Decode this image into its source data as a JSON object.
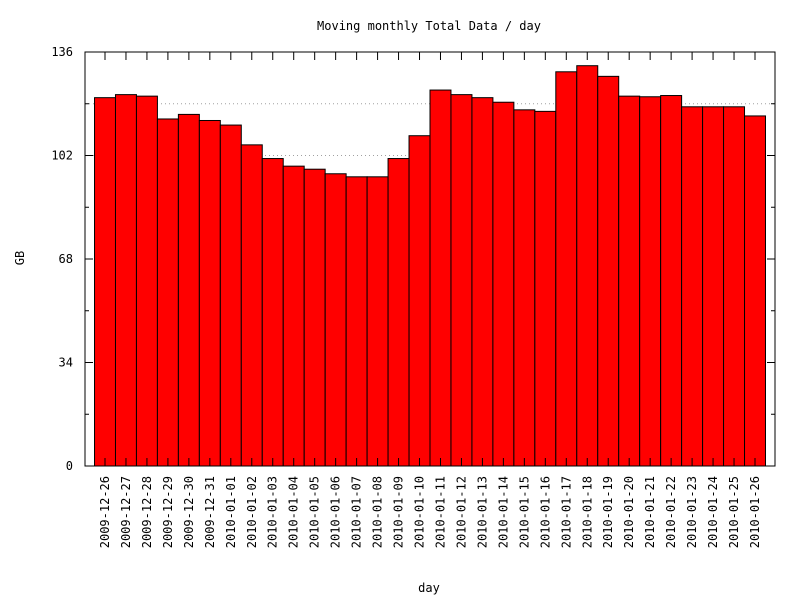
{
  "chart_data": {
    "type": "bar",
    "title": "Moving monthly Total Data / day",
    "xlabel": "day",
    "ylabel": "GB",
    "ylim": [
      0,
      136
    ],
    "yticks": [
      0,
      34,
      68,
      102,
      136
    ],
    "grid": "dotted lines at 119 and 102",
    "bar_color": "#ff0000",
    "categories": [
      "2009-12-26",
      "2009-12-27",
      "2009-12-28",
      "2009-12-29",
      "2009-12-30",
      "2009-12-31",
      "2010-01-01",
      "2010-01-02",
      "2010-01-03",
      "2010-01-04",
      "2010-01-05",
      "2010-01-06",
      "2010-01-07",
      "2010-01-08",
      "2010-01-09",
      "2010-01-10",
      "2010-01-11",
      "2010-01-12",
      "2010-01-13",
      "2010-01-14",
      "2010-01-15",
      "2010-01-16",
      "2010-01-17",
      "2010-01-18",
      "2010-01-19",
      "2010-01-20",
      "2010-01-21",
      "2010-01-22",
      "2010-01-23",
      "2010-01-24",
      "2010-01-25",
      "2010-01-26"
    ],
    "values": [
      121,
      122,
      121.5,
      114,
      115.5,
      113.5,
      112,
      105.5,
      101,
      98.5,
      97.5,
      96,
      95,
      95,
      101,
      108.5,
      123.5,
      122,
      121,
      119.5,
      117,
      116.5,
      129.5,
      131.5,
      128,
      121.5,
      121.3,
      121.7,
      118,
      118,
      118,
      115
    ]
  }
}
